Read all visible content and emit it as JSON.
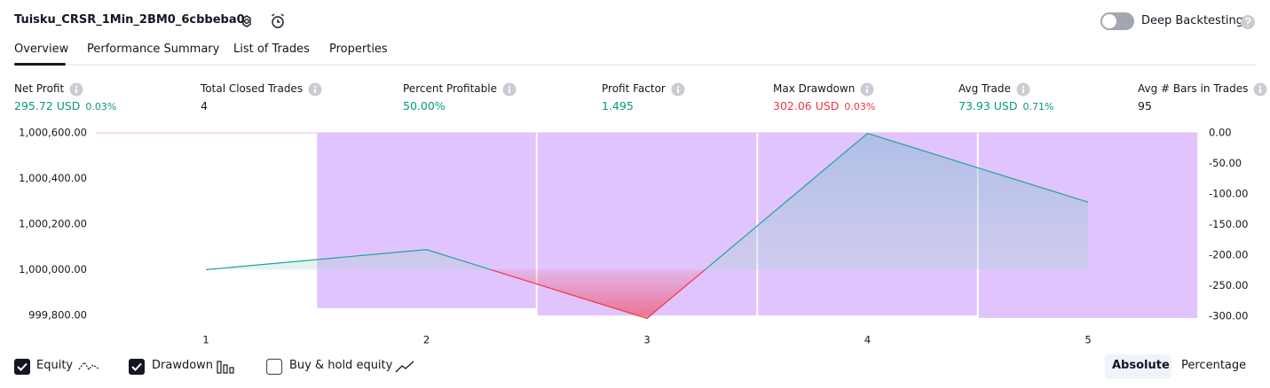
{
  "header": {
    "title": "Tuisku_CRSR_1Min_2BM0_6cbbeba0",
    "deep_backtesting": "Deep Backtesting"
  },
  "tabs": [
    "Overview",
    "Performance Summary",
    "List of Trades",
    "Properties"
  ],
  "metrics": [
    {
      "label": "Net Profit",
      "value": "295.72 USD",
      "percent": "0.03%",
      "color": "#089981"
    },
    {
      "label": "Total Closed Trades",
      "value": "4",
      "color": "#131722"
    },
    {
      "label": "Percent Profitable",
      "value": "50.00%",
      "color": "#089981"
    },
    {
      "label": "Profit Factor",
      "value": "1.495",
      "color": "#089981"
    },
    {
      "label": "Max Drawdown",
      "value": "302.06 USD",
      "percent": "0.03%",
      "color": "#f23645"
    },
    {
      "label": "Avg Trade",
      "value": "73.93 USD",
      "percent": "0.71%",
      "color": "#089981"
    },
    {
      "label": "Avg # Bars in Trades",
      "value": "95",
      "color": "#131722"
    }
  ],
  "chart_data": {
    "type": "line",
    "categories": [
      "1",
      "2",
      "3",
      "4",
      "5"
    ],
    "series": [
      {
        "name": "Equity",
        "color": "#22a39a",
        "color_below": "#f23645",
        "values": [
          1000000,
          1000088,
          999786,
          1000598,
          1000296
        ]
      },
      {
        "name": "Drawdown",
        "type": "bar",
        "axis": "y2",
        "color": "#e1c4fd",
        "values": [
          null,
          -287,
          -299,
          -299,
          -303
        ]
      }
    ],
    "ylim": [
      999780,
      1000600
    ],
    "yticks": [
      {
        "value": 1000600,
        "label": "1,000,600.00"
      },
      {
        "value": 1000400,
        "label": "1,000,400.00"
      },
      {
        "value": 1000200,
        "label": "1,000,200.00"
      },
      {
        "value": 1000000,
        "label": "1,000,000.00"
      },
      {
        "value": 999800,
        "label": "999,800.00"
      }
    ],
    "y2lim": [
      -306,
      0
    ],
    "y2ticks": [
      {
        "value": 0,
        "label": "0.00"
      },
      {
        "value": -50,
        "label": "-50.00"
      },
      {
        "value": -100,
        "label": "-100.00"
      },
      {
        "value": -150,
        "label": "-150.00"
      },
      {
        "value": -200,
        "label": "-200.00"
      },
      {
        "value": -250,
        "label": "-250.00"
      },
      {
        "value": -300,
        "label": "-300.00"
      }
    ]
  },
  "controls": {
    "buy_hold": "Buy & hold equity",
    "absolute": "Absolute",
    "percentage": "Percentage"
  }
}
